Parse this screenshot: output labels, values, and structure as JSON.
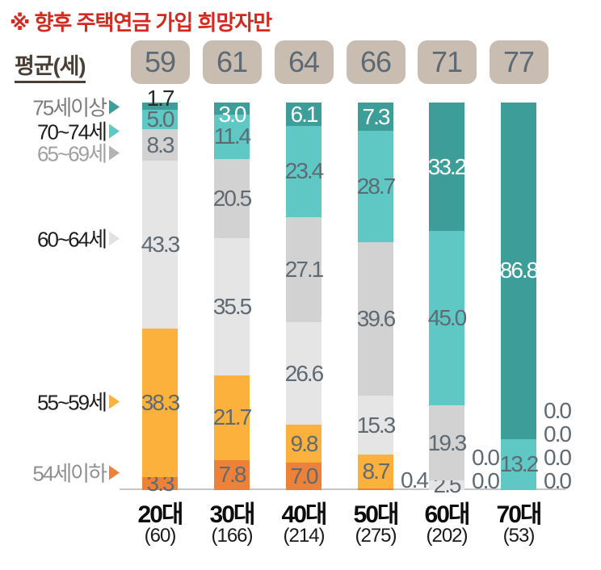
{
  "note": "※  향후 주택연금 가입 희망자만",
  "avg_row": {
    "label": "평균(세)",
    "values": [
      "59",
      "61",
      "64",
      "66",
      "71",
      "77"
    ]
  },
  "legend": [
    {
      "label": "75세이상",
      "marker_color": "#3d9e99",
      "text_color": "#7c7c7c"
    },
    {
      "label": "70~74세",
      "marker_color": "#5fc8c4",
      "text_color": "#1e1e1e"
    },
    {
      "label": "65~69세",
      "marker_color": "#b3b3b3",
      "text_color": "#a0a0a0"
    },
    {
      "label": "60~64세",
      "marker_color": "#e2e2e2",
      "text_color": "#1e1e1e"
    },
    {
      "label": "55~59세",
      "marker_color": "#fcb13c",
      "text_color": "#1e1e1e"
    },
    {
      "label": "54세이하",
      "marker_color": "#ed8138",
      "text_color": "#8f8f8f"
    }
  ],
  "chart_data": {
    "type": "bar",
    "stacked": true,
    "percent": true,
    "title": "※ 향후 주택연금 가입 희망자만",
    "xlabel": "",
    "ylabel": "",
    "ylim": [
      0,
      100
    ],
    "grid": false,
    "legend_position": "left",
    "categories": [
      "20대",
      "30대",
      "40대",
      "50대",
      "60대",
      "70대"
    ],
    "category_counts": [
      "(60)",
      "(166)",
      "(214)",
      "(275)",
      "(202)",
      "(53)"
    ],
    "averages_age": [
      59,
      61,
      64,
      66,
      71,
      77
    ],
    "series": [
      {
        "name": "54세이하",
        "color": "#ed8138",
        "values": [
          3.3,
          7.8,
          7.0,
          0.4,
          0.0,
          0.0
        ]
      },
      {
        "name": "55~59세",
        "color": "#fcb13c",
        "values": [
          38.3,
          21.7,
          9.8,
          8.7,
          0.0,
          0.0
        ]
      },
      {
        "name": "60~64세",
        "color": "#e5e5e5",
        "values": [
          43.3,
          35.5,
          26.6,
          15.3,
          2.5,
          0.0
        ]
      },
      {
        "name": "65~69세",
        "color": "#d2d2d2",
        "values": [
          8.3,
          20.5,
          27.1,
          39.6,
          19.3,
          0.0
        ]
      },
      {
        "name": "70~74세",
        "color": "#5fc8c4",
        "values": [
          5.0,
          11.4,
          23.4,
          28.7,
          45.0,
          13.2
        ]
      },
      {
        "name": "75세이상",
        "color": "#3d9e99",
        "values": [
          1.7,
          3.0,
          6.1,
          7.3,
          33.2,
          86.8
        ]
      }
    ]
  },
  "colors": {
    "title_red": "#d3291f",
    "avg_label_brown": "#4a3f36",
    "badge_bg": "#c9bcb1",
    "badge_text": "#5d6a74",
    "value_label": "#5f6a73",
    "value_label_white": "#ffffff",
    "value_label_dark": "#2a2a2a",
    "axis_line": "#c6c6c6",
    "x_cat_text": "#0d0d0d",
    "x_count_text": "#1a1a1a"
  }
}
